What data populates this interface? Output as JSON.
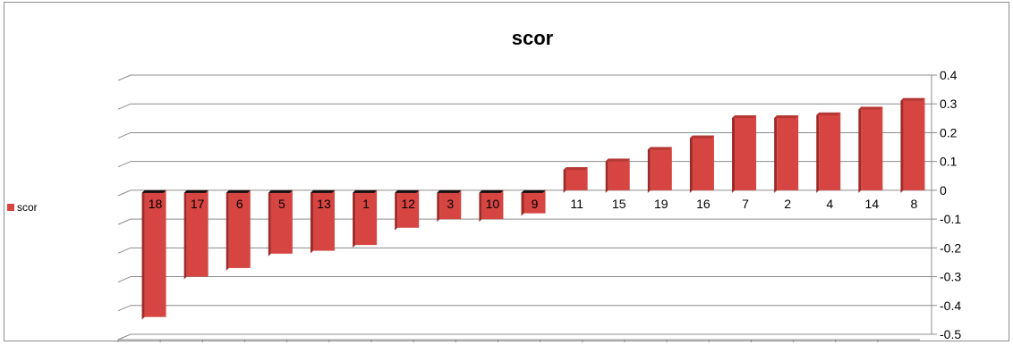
{
  "chart_data": {
    "type": "bar",
    "title": "scor",
    "xlabel": "",
    "ylabel": "",
    "categories": [
      "18",
      "17",
      "6",
      "5",
      "13",
      "1",
      "12",
      "3",
      "10",
      "9",
      "11",
      "15",
      "19",
      "16",
      "7",
      "2",
      "4",
      "14",
      "8"
    ],
    "series": [
      {
        "name": "scor",
        "values": [
          -0.44,
          -0.3,
          -0.27,
          -0.22,
          -0.21,
          -0.19,
          -0.13,
          -0.1,
          -0.1,
          -0.08,
          0.08,
          0.11,
          0.15,
          0.19,
          0.26,
          0.26,
          0.27,
          0.29,
          0.32
        ]
      }
    ],
    "ylim": [
      -0.5,
      0.4
    ],
    "yticks": [
      "0.4",
      "0.3",
      "0.2",
      "0.1",
      "0",
      "-0.1",
      "-0.2",
      "-0.3",
      "-0.4",
      "-0.5"
    ],
    "grid": true,
    "legend_position": "left",
    "bar_style": "3d-column",
    "colors": {
      "bar_front": "#d64541",
      "bar_side": "#9e2a27",
      "bar_top": "#b33834",
      "gridline": "#8c8c8c"
    }
  }
}
